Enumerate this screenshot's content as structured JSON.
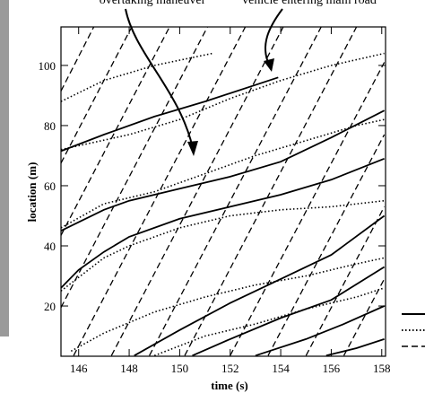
{
  "chart_data": {
    "type": "line",
    "xlabel": "time (s)",
    "ylabel": "location (m)",
    "annotations": [
      "overtaking maneuver",
      "vehicle entering main road"
    ],
    "xlim": [
      145.3,
      158.15
    ],
    "ylim": [
      3.3,
      112.8
    ],
    "xticks": [
      146,
      148,
      150,
      152,
      154,
      156,
      158
    ],
    "yticks": [
      20,
      40,
      60,
      80,
      100
    ],
    "series": [
      {
        "style": "solid",
        "color": "#000",
        "x": [
          145.3,
          147,
          149,
          151,
          153.9
        ],
        "values": [
          71.5,
          77,
          83,
          88,
          96
        ]
      },
      {
        "style": "solid",
        "color": "#000",
        "x": [
          145.3,
          147,
          148,
          150,
          152,
          154,
          156,
          158.1
        ],
        "values": [
          45,
          52,
          55,
          59,
          63,
          68,
          76,
          85
        ]
      },
      {
        "style": "solid",
        "color": "#000",
        "x": [
          145.3,
          146,
          147,
          148,
          150,
          152,
          154,
          156,
          158.1
        ],
        "values": [
          26,
          32,
          38,
          43,
          49,
          53,
          57,
          62,
          69
        ]
      },
      {
        "style": "solid",
        "color": "#000",
        "x": [
          148.2,
          150,
          152,
          154,
          156,
          158.1
        ],
        "values": [
          3.5,
          12,
          21,
          29,
          37,
          50
        ]
      },
      {
        "style": "solid",
        "color": "#000",
        "x": [
          150.5,
          152,
          154,
          156,
          158.1
        ],
        "values": [
          3.5,
          9,
          16,
          22,
          33
        ]
      },
      {
        "style": "solid",
        "color": "#000",
        "x": [
          153,
          155,
          156.5,
          158.1
        ],
        "values": [
          3.5,
          9,
          14,
          20
        ]
      },
      {
        "style": "solid",
        "color": "#000",
        "x": [
          155.8,
          157,
          158.1
        ],
        "values": [
          3.5,
          6,
          9
        ]
      },
      {
        "style": "dotted",
        "color": "#000",
        "x": [
          145.3,
          147,
          149,
          151.3
        ],
        "values": [
          88,
          95,
          100,
          104
        ]
      },
      {
        "style": "dotted",
        "color": "#000",
        "x": [
          145.3,
          148,
          150,
          152,
          154,
          156,
          158.1
        ],
        "values": [
          72,
          77,
          82,
          89,
          95,
          100,
          104
        ]
      },
      {
        "style": "dotted",
        "color": "#000",
        "x": [
          145.3,
          147,
          149,
          151,
          153,
          155,
          157,
          158.1
        ],
        "values": [
          46,
          54,
          58,
          64,
          70,
          75,
          80,
          82
        ]
      },
      {
        "style": "dotted",
        "color": "#000",
        "x": [
          145.3,
          147,
          148,
          150,
          152,
          154,
          156,
          158.1
        ],
        "values": [
          25,
          36,
          40,
          46,
          50,
          52,
          53,
          55
        ]
      },
      {
        "style": "dotted",
        "color": "#000",
        "x": [
          145.7,
          147,
          149,
          151,
          153,
          155,
          157,
          158.1
        ],
        "values": [
          5,
          11,
          18,
          23,
          27,
          30,
          34,
          36
        ]
      },
      {
        "style": "dotted",
        "color": "#000",
        "x": [
          149,
          151,
          153,
          155,
          157,
          158.1
        ],
        "values": [
          3.5,
          10,
          14,
          19,
          23,
          26
        ]
      },
      {
        "style": "dashed",
        "color": "#000",
        "x": [
          145.8,
          152.6
        ],
        "values": [
          3.5,
          112.8
        ]
      },
      {
        "style": "dashed",
        "color": "#000",
        "x": [
          147.3,
          154.1
        ],
        "values": [
          3.5,
          112.8
        ]
      },
      {
        "style": "dashed",
        "color": "#000",
        "x": [
          148.8,
          155.6
        ],
        "values": [
          3.5,
          112.8
        ]
      },
      {
        "style": "dashed",
        "color": "#000",
        "x": [
          150.2,
          157
        ],
        "values": [
          3.5,
          112.8
        ]
      },
      {
        "style": "dashed",
        "color": "#000",
        "x": [
          152,
          158.1
        ],
        "values": [
          3.5,
          101
        ]
      },
      {
        "style": "dashed",
        "color": "#000",
        "x": [
          153.5,
          158.1
        ],
        "values": [
          3.5,
          77
        ]
      },
      {
        "style": "dashed",
        "color": "#000",
        "x": [
          155,
          158.1
        ],
        "values": [
          3.5,
          53
        ]
      },
      {
        "style": "dashed",
        "color": "#000",
        "x": [
          156.5,
          158.1
        ],
        "values": [
          3.5,
          29
        ]
      },
      {
        "style": "dashed",
        "color": "#000",
        "x": [
          145.3,
          151.1
        ],
        "values": [
          19.5,
          112.8
        ]
      },
      {
        "style": "dashed",
        "color": "#000",
        "x": [
          145.3,
          149.6
        ],
        "values": [
          43.5,
          112.8
        ]
      },
      {
        "style": "dashed",
        "color": "#000",
        "x": [
          145.3,
          148.1
        ],
        "values": [
          67.5,
          112.8
        ]
      },
      {
        "style": "dashed",
        "color": "#000",
        "x": [
          145.3,
          146.6
        ],
        "values": [
          91.5,
          112.8
        ]
      }
    ]
  }
}
